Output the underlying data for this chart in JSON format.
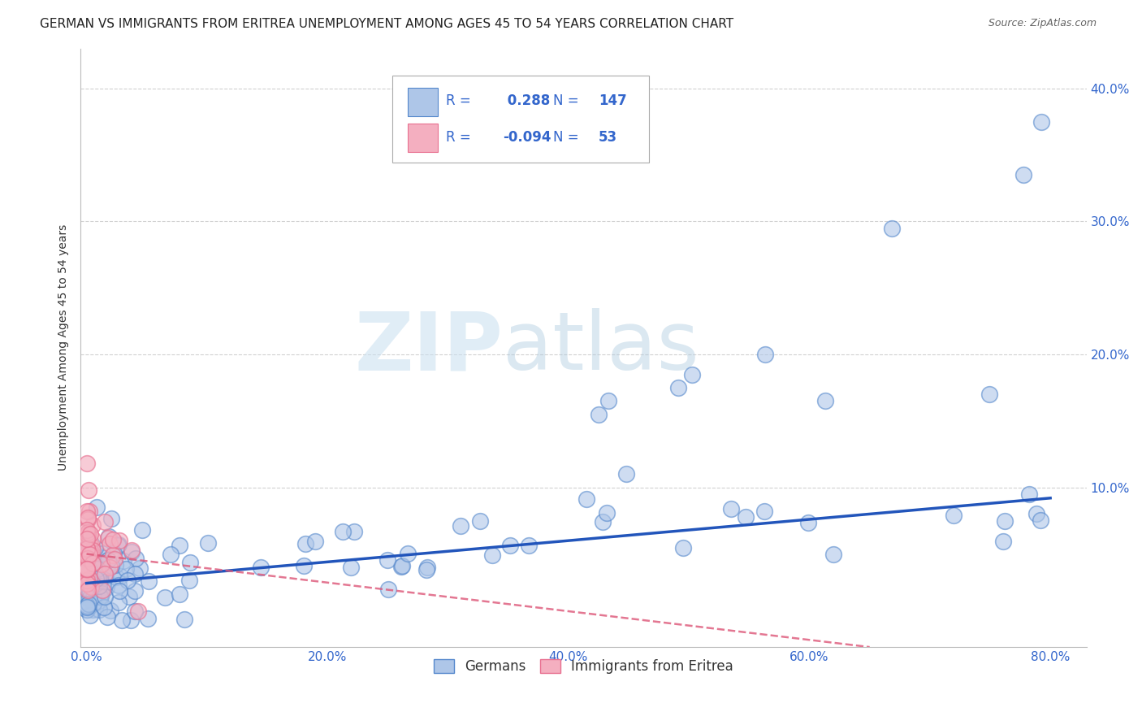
{
  "title": "GERMAN VS IMMIGRANTS FROM ERITREA UNEMPLOYMENT AMONG AGES 45 TO 54 YEARS CORRELATION CHART",
  "source": "Source: ZipAtlas.com",
  "xlabel_ticks": [
    "0.0%",
    "20.0%",
    "40.0%",
    "60.0%",
    "80.0%"
  ],
  "ylabel_ticks": [
    "10.0%",
    "20.0%",
    "30.0%",
    "40.0%"
  ],
  "blue_R": 0.288,
  "blue_N": 147,
  "pink_R": -0.094,
  "pink_N": 53,
  "blue_color": "#aec6e8",
  "pink_color": "#f4afc0",
  "blue_edge_color": "#5588cc",
  "pink_edge_color": "#e87090",
  "blue_line_color": "#2255bb",
  "pink_line_color": "#dd5577",
  "watermark_zip": "ZIP",
  "watermark_atlas": "atlas",
  "legend_label_blue": "Germans",
  "legend_label_pink": "Immigrants from Eritrea",
  "background_color": "#ffffff",
  "grid_color": "#cccccc",
  "xlim": [
    -0.005,
    0.83
  ],
  "ylim": [
    -0.02,
    0.43
  ],
  "blue_trend_x": [
    0.0,
    0.8
  ],
  "blue_trend_y": [
    0.028,
    0.092
  ],
  "pink_trend_x": [
    0.0,
    0.65
  ],
  "pink_trend_y": [
    0.05,
    -0.02
  ],
  "title_fontsize": 11,
  "axis_label_fontsize": 10,
  "tick_fontsize": 11
}
